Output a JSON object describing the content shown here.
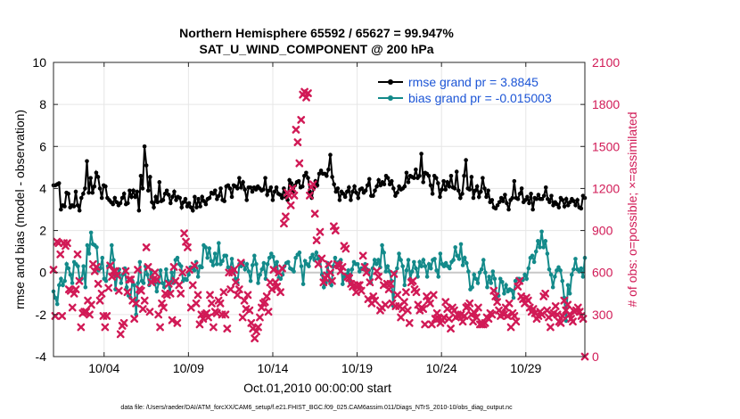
{
  "chart_data": {
    "type": "line",
    "title": "Northern Hemisphere 65592 / 65627 = 99.947%",
    "subtitle": "SAT_U_WIND_COMPONENT @ 200 hPa",
    "xlabel": "Oct.01,2010 00:00:00 start",
    "ylabel_left": "rmse and bias (model - observation)",
    "ylabel_right": "# of obs: o=possible; ×=assimilated",
    "footnote": "data file: /Users/raeder/DAI/ATM_forcXX/CAM6_setup/f.e21.FHIST_BGC.f09_025.CAM6assim.011/Diags_NTrS_2010-10/obs_diag_output.nc",
    "xlim": [
      0,
      31.5
    ],
    "ylim_left": [
      -4,
      10
    ],
    "ylim_right": [
      0,
      2100
    ],
    "x_ticks": [
      3,
      8,
      13,
      18,
      23,
      28
    ],
    "x_tick_labels": [
      "10/04",
      "10/09",
      "10/14",
      "10/19",
      "10/24",
      "10/29"
    ],
    "y_ticks_left": [
      -4,
      -2,
      0,
      2,
      4,
      6,
      8,
      10
    ],
    "y_ticks_right": [
      0,
      300,
      600,
      900,
      1200,
      1500,
      1800,
      2100
    ],
    "grid": true,
    "legend_position": "top-right",
    "series": [
      {
        "name": "rmse grand pr = 3.8845",
        "color": "#000000",
        "axis": "left",
        "values": [
          4.15,
          4.15,
          4.2,
          4.25,
          3.0,
          3.2,
          3.15,
          3.8,
          3.75,
          3.1,
          3.2,
          3.15,
          3.85,
          3.2,
          2.95,
          3.55,
          3.75,
          4.0,
          5.3,
          3.8,
          4.5,
          3.8,
          4.1,
          4.75,
          4.55,
          4.0,
          3.55,
          4.15,
          4.1,
          3.55,
          3.45,
          3.35,
          3.25,
          3.55,
          3.35,
          3.2,
          3.3,
          3.55,
          3.75,
          3.25,
          3.3,
          3.9,
          3.6,
          3.9,
          3.6,
          3.85,
          2.95,
          4.6,
          4.0,
          6.0,
          5.1,
          3.9,
          4.55,
          3.35,
          3.1,
          3.6,
          3.35,
          4.3,
          3.4,
          3.45,
          3.75,
          3.9,
          3.7,
          3.3,
          3.6,
          3.85,
          3.45,
          3.6,
          3.55,
          3.1,
          3.35,
          3.5,
          3.15,
          3.3,
          3.1,
          2.95,
          3.6,
          3.1,
          3.5,
          3.15,
          3.6,
          3.4,
          3.25,
          3.5,
          3.55,
          3.8,
          3.75,
          3.9,
          3.5,
          3.65,
          4.0,
          3.45,
          3.4,
          4.1,
          4.15,
          4.0,
          3.6,
          4.15,
          4.1,
          4.0,
          4.5,
          4.05,
          4.3,
          3.95,
          3.45,
          4.05,
          4.05,
          3.85,
          4.05,
          3.95,
          4.1,
          4.0,
          3.9,
          3.95,
          4.5,
          3.7,
          3.9,
          4.05,
          3.45,
          3.85,
          4.05,
          3.75,
          3.7,
          3.55,
          4.0,
          3.6,
          3.45,
          4.4,
          4.25,
          3.85,
          4.15,
          4.3,
          4.35,
          4.05,
          4.1,
          4.6,
          4.75,
          4.5,
          3.85,
          3.55,
          4.0,
          4.35,
          4.15,
          4.7,
          4.85,
          4.7,
          4.7,
          4.6,
          4.9,
          5.6,
          4.55,
          4.2,
          3.85,
          4.0,
          3.45,
          3.85,
          3.75,
          3.6,
          3.85,
          4.05,
          3.45,
          3.85,
          4.1,
          3.8,
          3.55,
          3.95,
          4.0,
          3.8,
          3.9,
          4.15,
          4.45,
          3.65,
          3.65,
          3.9,
          4.1,
          4.4,
          4.15,
          4.3,
          4.2,
          4.6,
          4.5,
          4.2,
          4.35,
          4.0,
          3.65,
          3.8,
          4.1,
          3.95,
          4.0,
          4.1,
          4.75,
          4.3,
          4.6,
          4.55,
          4.5,
          4.9,
          4.5,
          4.6,
          5.65,
          4.3,
          4.75,
          4.7,
          4.6,
          4.15,
          3.75,
          4.6,
          4.5,
          4.25,
          3.6,
          3.95,
          4.35,
          3.95,
          4.3,
          4.1,
          4.6,
          4.05,
          4.0,
          4.8,
          3.9,
          3.55,
          3.75,
          4.6,
          5.35,
          4.0,
          3.95,
          4.55,
          3.55,
          3.9,
          4.1,
          3.6,
          3.85,
          4.5,
          4.0,
          3.6,
          3.9,
          3.35,
          3.45,
          3.1,
          3.05,
          3.2,
          3.35,
          3.55,
          3.4,
          3.7,
          3.3,
          3.0,
          3.45,
          3.55,
          4.35,
          3.55,
          3.5,
          3.75,
          4.0,
          3.35,
          3.45,
          3.6,
          3.3,
          3.75,
          3.0,
          3.55,
          3.5,
          3.7,
          3.5,
          3.5,
          3.65,
          4.05,
          3.5,
          3.35,
          3.65,
          3.2,
          3.35,
          3.25,
          3.1,
          3.55,
          3.45,
          3.15,
          3.5,
          3.2,
          3.35,
          3.5,
          3.4,
          3.2,
          3.45,
          3.1,
          3.05,
          3.65,
          3.55
        ]
      },
      {
        "name": "bias grand pr = -0.015003",
        "color": "#138a8a",
        "axis": "left",
        "values": [
          -0.9,
          -1.2,
          -1.5,
          -0.6,
          -0.3,
          -0.6,
          -0.4,
          0.4,
          0.2,
          -0.1,
          -0.5,
          0.5,
          0.4,
          0.3,
          -0.4,
          -0.3,
          0.3,
          -0.7,
          1.3,
          0.9,
          1.9,
          1.35,
          1.3,
          1.2,
          0.1,
          0.2,
          0.7,
          -0.3,
          -0.4,
          0.3,
          0.3,
          1.3,
          0.6,
          -0.8,
          -0.1,
          0.15,
          -0.5,
          -0.1,
          0.2,
          -0.7,
          -1.1,
          -1.2,
          -0.4,
          -0.6,
          -2.0,
          -0.5,
          0.5,
          -0.4,
          -0.5,
          0.3,
          -0.1,
          -0.6,
          0.1,
          -0.3,
          -0.5,
          -0.9,
          -0.5,
          0.1,
          -0.5,
          -0.7,
          0.15,
          -0.4,
          -1.0,
          0.0,
          -0.5,
          0.6,
          0.7,
          0.4,
          0.3,
          -0.4,
          -0.3,
          -0.35,
          -0.1,
          0.25,
          0.2,
          0.1,
          0.5,
          -0.2,
          0.3,
          0.25,
          1.3,
          1.2,
          0.7,
          1.15,
          0.55,
          0.35,
          0.9,
          0.4,
          1.4,
          0.4,
          0.55,
          0.8,
          0.8,
          0.25,
          0.1,
          0.65,
          0.15,
          -0.3,
          -0.5,
          0.4,
          0.3,
          0.5,
          0.15,
          0.4,
          0.05,
          -0.4,
          0.35,
          0.8,
          0.4,
          -0.5,
          -0.1,
          0.15,
          0.45,
          -0.3,
          0.4,
          0.7,
          0.9,
          0.75,
          0.25,
          0.5,
          -0.25,
          -0.3,
          -0.1,
          0.3,
          0.45,
          0.5,
          0.2,
          0.15,
          0.05,
          0.7,
          0.85,
          0.95,
          0.3,
          -0.55,
          0.55,
          0.4,
          0.3,
          0.7,
          0.85,
          0.6,
          0.95,
          0.65,
          0.6,
          -0.1,
          -0.7,
          -0.5,
          0.45,
          -0.4,
          -0.6,
          0.3,
          0.7,
          0.3,
          0.5,
          0.6,
          -0.55,
          -0.2,
          -0.1,
          0.1,
          -0.5,
          0.15,
          0.5,
          0.4,
          0.4,
          0.05,
          0.2,
          0.15,
          0.4,
          0.15,
          0.1,
          -0.5,
          0.2,
          0.6,
          0.4,
          0.6,
          0.25,
          1.3,
          0.95,
          0.05,
          0.3,
          0.05,
          -0.4,
          -1.6,
          0.0,
          0.2,
          0.9,
          0.6,
          0.3,
          -0.6,
          0.1,
          0.6,
          -0.3,
          0.05,
          0.5,
          0.2,
          -0.2,
          0.5,
          0.3,
          0.6,
          0.3,
          -0.2,
          0.4,
          0.2,
          0.6,
          0.65,
          0.1,
          -0.2,
          0.9,
          0.4,
          0.3,
          0.45,
          0.3,
          0.2,
          0.5,
          0.6,
          1.2,
          0.8,
          0.65,
          1.35,
          0.35,
          0.7,
          0.45,
          0.05,
          -0.8,
          -0.7,
          -0.1,
          -0.3,
          -0.5,
          0.0,
          0.15,
          0.6,
          0.0,
          -0.7,
          -0.2,
          -0.5,
          0.05,
          -0.3,
          -1.25,
          -1.1,
          -0.3,
          -0.45,
          -1.0,
          -0.6,
          -0.9,
          -0.8,
          -0.85,
          -1.2,
          -0.4,
          -0.3,
          -0.3,
          -0.4,
          -0.35,
          -0.1,
          -0.3,
          0.2,
          0.7,
          0.8,
          0.5,
          1.0,
          1.5,
          1.2,
          1.95,
          1.2,
          1.5,
          0.9,
          0.15,
          -0.1,
          -0.7,
          -0.2,
          0.1,
          0.25,
          0.1,
          -0.4,
          -1.2,
          -2.3,
          -0.6,
          -1.0,
          -0.1,
          0.15,
          0.65,
          0.15,
          0.05,
          0.2,
          -0.2,
          0.7
        ]
      },
      {
        "name": "possible",
        "color": "#d11a56",
        "axis": "right",
        "marker": "o",
        "values": [
          620,
          290,
          820,
          810,
          730,
          290,
          810,
          790,
          810,
          480,
          470,
          350,
          450,
          480,
          730,
          540,
          210,
          310,
          320,
          320,
          400,
          300,
          370,
          660,
          610,
          640,
          520,
          400,
          450,
          290,
          210,
          290,
          490,
          650,
          570,
          610,
          610,
          580,
          470,
          160,
          220,
          240,
          610,
          460,
          550,
          550,
          400,
          270,
          380,
          620,
          480,
          470,
          340,
          400,
          780,
          640,
          320,
          530,
          550,
          600,
          550,
          300,
          210,
          380,
          350,
          450,
          440,
          520,
          450,
          260,
          640,
          540,
          240,
          510,
          450,
          600,
          880,
          820,
          780,
          620,
          350,
          510,
          650,
          380,
          440,
          230,
          300,
          270,
          300,
          310,
          280,
          440,
          380,
          210,
          320,
          310,
          400,
          380,
          300,
          460,
          300,
          200,
          600,
          480,
          600,
          620,
          530,
          440,
          480,
          670,
          280,
          400,
          340,
          440,
          330,
          240,
          200,
          130,
          180,
          210,
          280,
          350,
          380,
          390,
          430,
          320,
          530,
          480,
          620,
          530,
          500,
          600,
          460,
          630,
          950,
          1000,
          1170,
          1150,
          1080,
          1200,
          1150,
          1620,
          1530,
          1380,
          1690,
          1870,
          1890,
          1850,
          1880,
          1150,
          1210,
          1230,
          1020,
          830,
          660,
          890,
          700,
          530,
          560,
          580,
          660,
          600,
          540,
          930,
          900,
          660,
          650,
          610,
          640,
          790,
          770,
          570,
          560,
          520,
          500,
          510,
          460,
          510,
          510,
          470,
          720,
          640,
          600,
          410,
          530,
          380,
          430,
          400,
          610,
          570,
          330,
          350,
          510,
          370,
          520,
          480,
          520,
          380,
          590,
          360,
          440,
          360,
          280,
          340,
          390,
          460,
          330,
          240,
          530,
          540,
          480,
          460,
          370,
          330,
          350,
          340,
          230,
          430,
          400,
          380,
          230,
          440,
          270,
          310,
          270,
          240,
          260,
          280,
          390,
          340,
          270,
          200,
          350,
          330,
          280,
          300,
          290,
          300,
          250,
          290,
          350,
          360,
          380,
          300,
          250,
          310,
          280,
          350,
          230,
          230,
          230,
          240,
          280,
          270,
          310,
          300,
          470,
          430,
          390,
          330,
          290,
          310,
          300,
          350,
          290,
          380,
          210,
          310,
          290,
          250,
          500,
          540,
          430,
          410,
          380,
          420,
          400,
          350,
          320,
          340,
          310,
          270,
          290,
          320,
          300,
          430,
          450,
          330,
          280,
          210,
          300,
          310,
          360,
          300,
          250,
          240,
          290,
          400,
          330,
          370,
          300,
          270,
          250,
          320,
          330,
          350,
          320,
          290,
          270,
          0
        ]
      }
    ]
  }
}
